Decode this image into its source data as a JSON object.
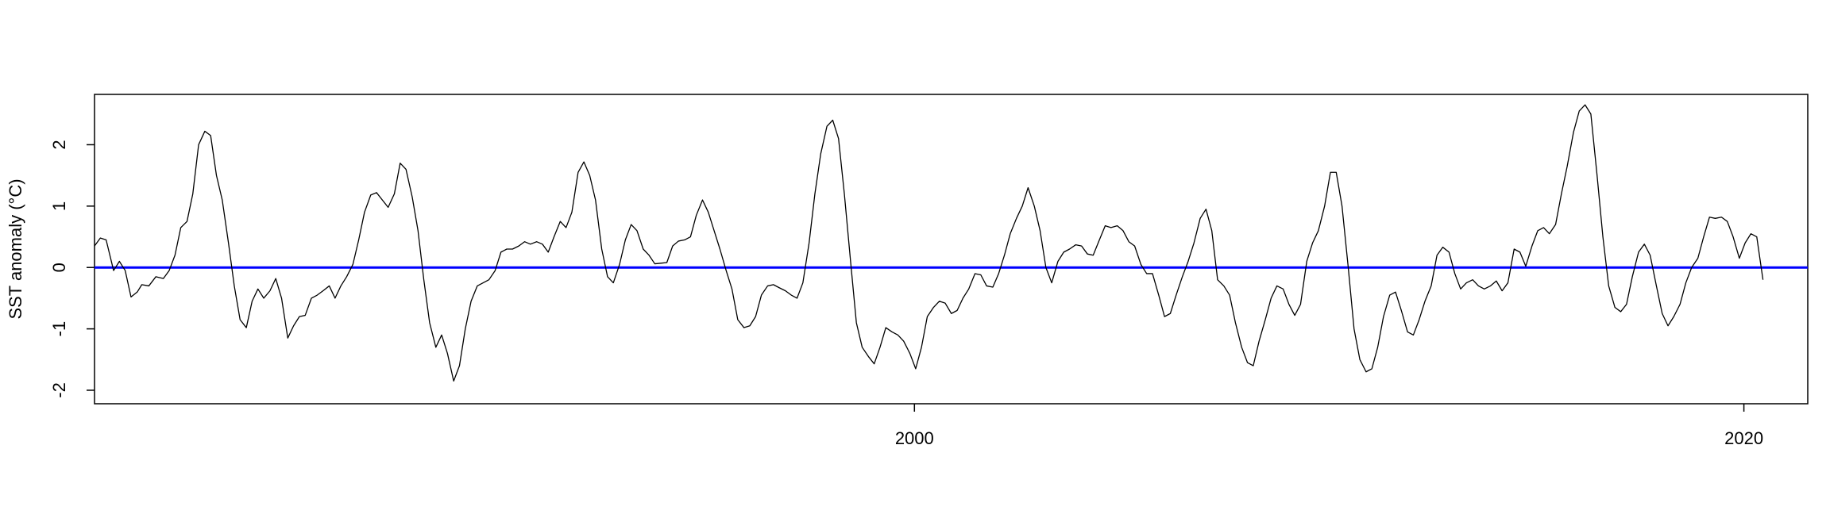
{
  "chart_data": {
    "type": "line",
    "ylabel": "SST anomaly (°C)",
    "xlim": [
      1980.23,
      2021.54
    ],
    "ylim": [
      -2.22,
      2.82
    ],
    "xticks": [
      2000,
      2020
    ],
    "yticks": [
      -2,
      -1,
      0,
      1,
      2
    ],
    "reference_line": {
      "value": 0,
      "color": "#0000ff"
    },
    "x": [
      1980.23,
      1980.37,
      1980.51,
      1980.69,
      1980.83,
      1980.97,
      1981.11,
      1981.26,
      1981.37,
      1981.54,
      1981.71,
      1981.89,
      1982.03,
      1982.17,
      1982.31,
      1982.46,
      1982.6,
      1982.74,
      1982.89,
      1983.03,
      1983.17,
      1983.31,
      1983.46,
      1983.6,
      1983.74,
      1983.89,
      1984.03,
      1984.17,
      1984.31,
      1984.46,
      1984.6,
      1984.74,
      1984.89,
      1985.03,
      1985.17,
      1985.31,
      1985.46,
      1985.6,
      1985.74,
      1985.89,
      1986.03,
      1986.17,
      1986.31,
      1986.46,
      1986.6,
      1986.74,
      1986.89,
      1987.03,
      1987.17,
      1987.31,
      1987.46,
      1987.6,
      1987.74,
      1987.89,
      1988.03,
      1988.17,
      1988.31,
      1988.46,
      1988.6,
      1988.74,
      1988.89,
      1989.03,
      1989.17,
      1989.31,
      1989.46,
      1989.6,
      1989.74,
      1989.89,
      1990.03,
      1990.17,
      1990.31,
      1990.46,
      1990.6,
      1990.74,
      1990.89,
      1991.03,
      1991.17,
      1991.31,
      1991.46,
      1991.6,
      1991.74,
      1991.89,
      1992.03,
      1992.17,
      1992.31,
      1992.46,
      1992.6,
      1992.74,
      1992.89,
      1993.03,
      1993.17,
      1993.31,
      1993.46,
      1993.6,
      1993.74,
      1993.89,
      1994.03,
      1994.17,
      1994.31,
      1994.46,
      1994.6,
      1994.74,
      1994.89,
      1995.03,
      1995.17,
      1995.31,
      1995.46,
      1995.6,
      1995.74,
      1995.89,
      1996.03,
      1996.17,
      1996.31,
      1996.46,
      1996.6,
      1996.74,
      1996.89,
      1997.03,
      1997.17,
      1997.31,
      1997.46,
      1997.6,
      1997.74,
      1997.89,
      1998.03,
      1998.17,
      1998.31,
      1998.46,
      1998.6,
      1998.74,
      1998.89,
      1999.03,
      1999.17,
      1999.31,
      1999.46,
      1999.6,
      1999.74,
      1999.89,
      2000.03,
      2000.17,
      2000.31,
      2000.46,
      2000.6,
      2000.74,
      2000.89,
      2001.03,
      2001.17,
      2001.31,
      2001.46,
      2001.6,
      2001.74,
      2001.89,
      2002.03,
      2002.17,
      2002.31,
      2002.46,
      2002.6,
      2002.74,
      2002.89,
      2003.03,
      2003.17,
      2003.31,
      2003.46,
      2003.6,
      2003.74,
      2003.89,
      2004.03,
      2004.17,
      2004.31,
      2004.46,
      2004.6,
      2004.74,
      2004.89,
      2005.03,
      2005.17,
      2005.31,
      2005.46,
      2005.6,
      2005.74,
      2005.89,
      2006.03,
      2006.17,
      2006.31,
      2006.46,
      2006.6,
      2006.74,
      2006.89,
      2007.03,
      2007.17,
      2007.31,
      2007.46,
      2007.6,
      2007.74,
      2007.89,
      2008.03,
      2008.17,
      2008.31,
      2008.46,
      2008.6,
      2008.74,
      2008.89,
      2009.03,
      2009.17,
      2009.31,
      2009.46,
      2009.6,
      2009.74,
      2009.89,
      2010.03,
      2010.17,
      2010.31,
      2010.46,
      2010.6,
      2010.74,
      2010.89,
      2011.03,
      2011.17,
      2011.31,
      2011.46,
      2011.6,
      2011.74,
      2011.89,
      2012.03,
      2012.17,
      2012.31,
      2012.46,
      2012.6,
      2012.74,
      2012.89,
      2013.03,
      2013.17,
      2013.31,
      2013.46,
      2013.6,
      2013.74,
      2013.89,
      2014.03,
      2014.17,
      2014.31,
      2014.46,
      2014.6,
      2014.74,
      2014.89,
      2015.03,
      2015.17,
      2015.31,
      2015.46,
      2015.6,
      2015.74,
      2015.89,
      2016.03,
      2016.17,
      2016.31,
      2016.46,
      2016.6,
      2016.74,
      2016.89,
      2017.03,
      2017.17,
      2017.31,
      2017.46,
      2017.6,
      2017.74,
      2017.89,
      2018.03,
      2018.17,
      2018.31,
      2018.46,
      2018.6,
      2018.74,
      2018.89,
      2019.03,
      2019.17,
      2019.31,
      2019.46,
      2019.6,
      2019.74,
      2019.89,
      2020.03,
      2020.17,
      2020.31,
      2020.46
    ],
    "series": [
      {
        "color": "#000000",
        "values": [
          0.35,
          0.48,
          0.45,
          -0.05,
          0.1,
          -0.05,
          -0.48,
          -0.4,
          -0.28,
          -0.3,
          -0.15,
          -0.18,
          -0.05,
          0.2,
          0.65,
          0.75,
          1.2,
          2.0,
          2.22,
          2.15,
          1.5,
          1.1,
          0.4,
          -0.3,
          -0.85,
          -0.98,
          -0.55,
          -0.35,
          -0.5,
          -0.38,
          -0.18,
          -0.5,
          -1.15,
          -0.95,
          -0.8,
          -0.78,
          -0.5,
          -0.45,
          -0.38,
          -0.3,
          -0.5,
          -0.3,
          -0.15,
          0.05,
          0.45,
          0.9,
          1.18,
          1.22,
          1.1,
          0.98,
          1.2,
          1.7,
          1.6,
          1.15,
          0.6,
          -0.2,
          -0.9,
          -1.3,
          -1.1,
          -1.4,
          -1.85,
          -1.6,
          -1.0,
          -0.55,
          -0.3,
          -0.25,
          -0.2,
          -0.05,
          0.25,
          0.3,
          0.3,
          0.35,
          0.42,
          0.38,
          0.42,
          0.38,
          0.25,
          0.5,
          0.75,
          0.65,
          0.9,
          1.55,
          1.72,
          1.5,
          1.1,
          0.3,
          -0.15,
          -0.25,
          0.05,
          0.45,
          0.7,
          0.6,
          0.3,
          0.2,
          0.06,
          0.07,
          0.08,
          0.35,
          0.43,
          0.45,
          0.5,
          0.85,
          1.1,
          0.9,
          0.6,
          0.3,
          -0.05,
          -0.35,
          -0.85,
          -0.98,
          -0.95,
          -0.8,
          -0.45,
          -0.3,
          -0.28,
          -0.33,
          -0.38,
          -0.45,
          -0.5,
          -0.25,
          0.4,
          1.2,
          1.85,
          2.3,
          2.4,
          2.1,
          1.2,
          0.1,
          -0.9,
          -1.3,
          -1.45,
          -1.57,
          -1.3,
          -0.98,
          -1.05,
          -1.1,
          -1.2,
          -1.4,
          -1.65,
          -1.3,
          -0.8,
          -0.65,
          -0.55,
          -0.58,
          -0.75,
          -0.7,
          -0.5,
          -0.35,
          -0.1,
          -0.12,
          -0.3,
          -0.32,
          -0.1,
          0.2,
          0.55,
          0.8,
          1.0,
          1.3,
          1.0,
          0.6,
          0.0,
          -0.25,
          0.1,
          0.25,
          0.3,
          0.37,
          0.35,
          0.22,
          0.2,
          0.45,
          0.68,
          0.65,
          0.68,
          0.6,
          0.42,
          0.35,
          0.05,
          -0.1,
          -0.1,
          -0.45,
          -0.8,
          -0.75,
          -0.45,
          -0.15,
          0.1,
          0.4,
          0.8,
          0.95,
          0.6,
          -0.2,
          -0.3,
          -0.45,
          -0.9,
          -1.3,
          -1.55,
          -1.6,
          -1.2,
          -0.85,
          -0.5,
          -0.3,
          -0.35,
          -0.6,
          -0.78,
          -0.6,
          0.1,
          0.4,
          0.6,
          1.0,
          1.55,
          1.55,
          1.0,
          0.0,
          -1.0,
          -1.5,
          -1.7,
          -1.65,
          -1.3,
          -0.8,
          -0.45,
          -0.4,
          -0.7,
          -1.05,
          -1.1,
          -0.85,
          -0.55,
          -0.3,
          0.2,
          0.33,
          0.25,
          -0.1,
          -0.35,
          -0.25,
          -0.2,
          -0.3,
          -0.35,
          -0.3,
          -0.22,
          -0.38,
          -0.25,
          0.3,
          0.25,
          0.02,
          0.35,
          0.6,
          0.65,
          0.55,
          0.7,
          1.2,
          1.65,
          2.2,
          2.55,
          2.65,
          2.5,
          1.5,
          0.5,
          -0.3,
          -0.65,
          -0.72,
          -0.6,
          -0.15,
          0.25,
          0.38,
          0.2,
          -0.3,
          -0.75,
          -0.95,
          -0.8,
          -0.6,
          -0.25,
          0.0,
          0.15,
          0.5,
          0.82,
          0.8,
          0.82,
          0.75,
          0.5,
          0.15,
          0.4,
          0.55,
          0.5,
          -0.2
        ]
      }
    ]
  }
}
